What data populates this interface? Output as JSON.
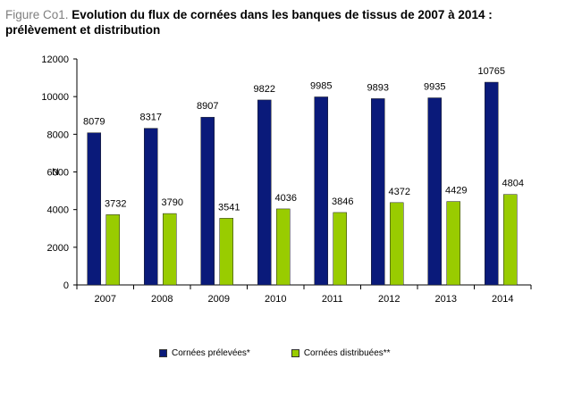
{
  "figure": {
    "prefix": "Figure Co1. ",
    "title_line1": "Evolution du flux de cornées dans les banques de tissus de 2007 à 2014 :",
    "title_line2": "prélèvement et distribution"
  },
  "colors": {
    "series1": "#0a1a7a",
    "series2": "#99cc00"
  },
  "chart_data": {
    "type": "bar",
    "categories": [
      "2007",
      "2008",
      "2009",
      "2010",
      "2011",
      "2012",
      "2013",
      "2014"
    ],
    "series": [
      {
        "name": "Cornées prélevées*",
        "values": [
          8079,
          8317,
          8907,
          9822,
          9985,
          9893,
          9935,
          10765
        ]
      },
      {
        "name": "Cornées distribuées**",
        "values": [
          3732,
          3790,
          3541,
          4036,
          3846,
          4372,
          4429,
          4804
        ]
      }
    ],
    "ylabel": "N",
    "ylim": [
      0,
      12000
    ],
    "yticks": [
      0,
      2000,
      4000,
      6000,
      8000,
      10000,
      12000
    ],
    "grid": false,
    "legend": "bottom"
  }
}
